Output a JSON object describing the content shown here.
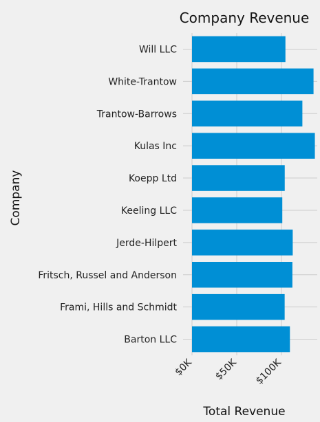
{
  "chart_data": {
    "type": "bar",
    "orientation": "horizontal",
    "title": "Company Revenue",
    "xlabel": "Total Revenue",
    "ylabel": "Company",
    "categories": [
      "Barton LLC",
      "Frami, Hills and Schmidt",
      "Fritsch, Russel and Anderson",
      "Jerde-Hilpert",
      "Keeling LLC",
      "Koepp Ltd",
      "Kulas Inc",
      "Trantow-Barrows",
      "White-Trantow",
      "Will LLC"
    ],
    "values": [
      109438,
      103569,
      112214,
      112591,
      100934,
      103660,
      137352,
      123381,
      135841,
      104437
    ],
    "xlim": [
      -10000,
      140000
    ],
    "xticks": [
      0,
      50000,
      100000
    ],
    "xtick_labels": [
      "$0K",
      "$50K",
      "$100K"
    ],
    "grid": true,
    "colors": {
      "bar": "#008fd5",
      "background": "#f0f0f0",
      "grid": "#cbcbcb"
    }
  }
}
